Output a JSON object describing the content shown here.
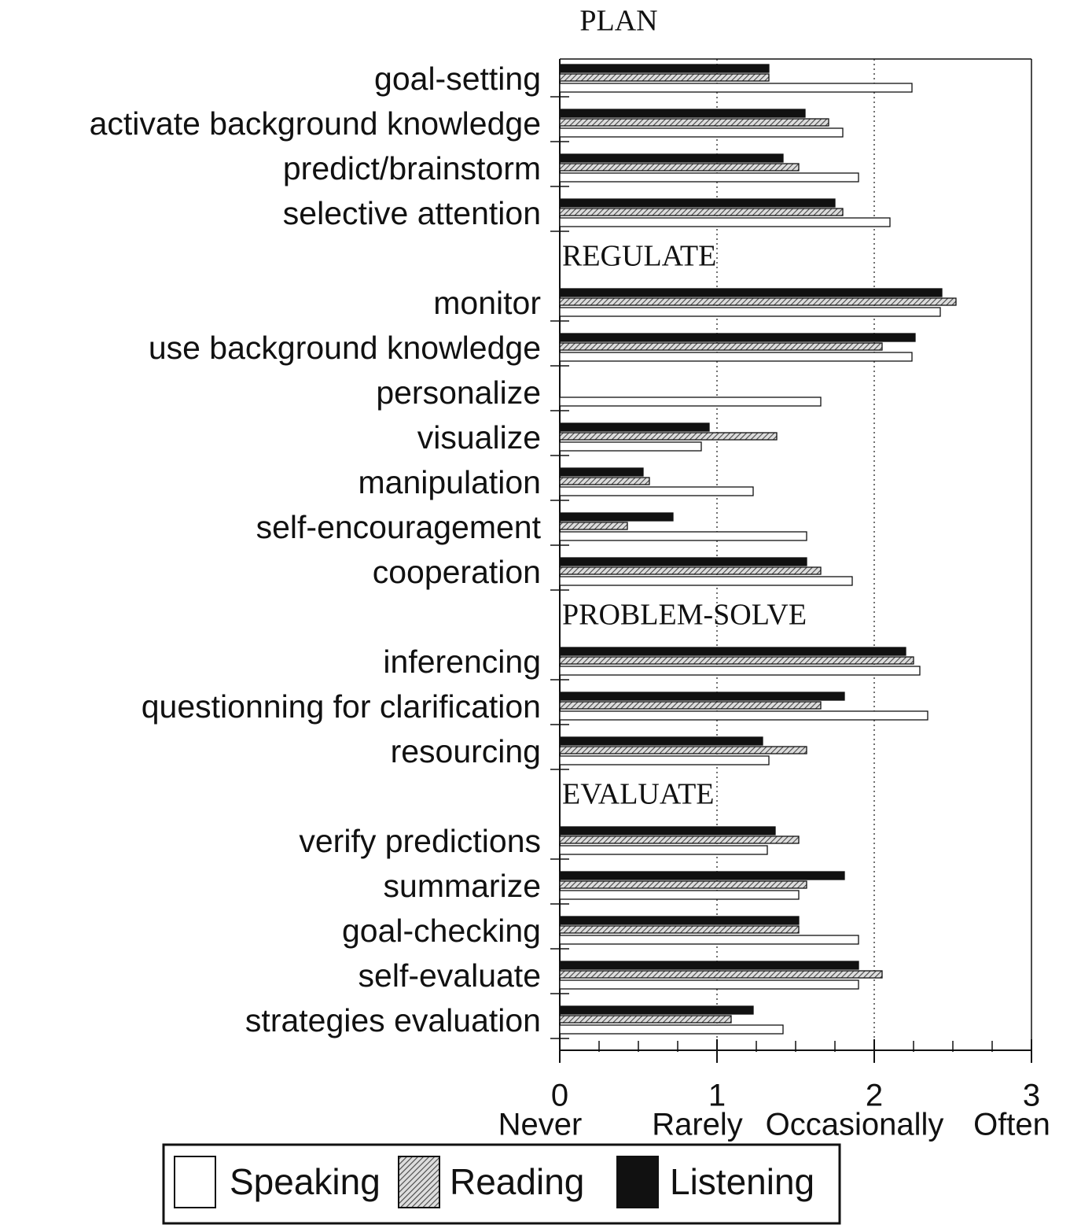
{
  "chart_data": {
    "type": "bar",
    "orientation": "horizontal",
    "sections": [
      {
        "name": "PLAN",
        "size": 4
      },
      {
        "name": "REGULATE",
        "size": 7
      },
      {
        "name": "PROBLEM-SOLVE",
        "size": 3
      },
      {
        "name": "EVALUATE",
        "size": 5
      }
    ],
    "categories": [
      "goal-setting",
      "activate background knowledge",
      "predict/brainstorm",
      "selective attention",
      "monitor",
      "use background knowledge",
      "personalize",
      "visualize",
      "manipulation",
      "self-encouragement",
      "cooperation",
      "inferencing",
      "questionning for clarification",
      "resourcing",
      "verify predictions",
      "summarize",
      "goal-checking",
      "self-evaluate",
      "strategies evaluation"
    ],
    "series": [
      {
        "name": "Speaking",
        "color": "#ffffff",
        "pattern": "solid",
        "values": [
          2.24,
          1.8,
          1.9,
          2.1,
          2.42,
          2.24,
          1.66,
          0.9,
          1.23,
          1.57,
          1.86,
          2.29,
          2.34,
          1.33,
          1.32,
          1.52,
          1.9,
          1.9,
          1.42
        ]
      },
      {
        "name": "Reading",
        "color": "#555555",
        "pattern": "hatch",
        "values": [
          1.33,
          1.71,
          1.52,
          1.8,
          2.52,
          2.05,
          0,
          1.38,
          0.57,
          0.43,
          1.66,
          2.25,
          1.66,
          1.57,
          1.52,
          1.57,
          1.52,
          2.05,
          1.09
        ]
      },
      {
        "name": "Listening",
        "color": "#111111",
        "pattern": "solid",
        "values": [
          1.33,
          1.56,
          1.42,
          1.75,
          2.43,
          2.26,
          0,
          0.95,
          0.53,
          0.72,
          1.57,
          2.2,
          1.81,
          1.29,
          1.37,
          1.81,
          1.52,
          1.9,
          1.23
        ]
      }
    ],
    "xlim": [
      0,
      3
    ],
    "xticks": [
      0,
      1,
      2,
      3
    ],
    "xtick_descriptions": [
      "Never",
      "Rarely",
      "Occasionally",
      "Often"
    ],
    "xminorticks": [
      0.25,
      0.5,
      0.75,
      1.25,
      1.5,
      1.75,
      2.25,
      2.5,
      2.75
    ],
    "grid": true
  }
}
